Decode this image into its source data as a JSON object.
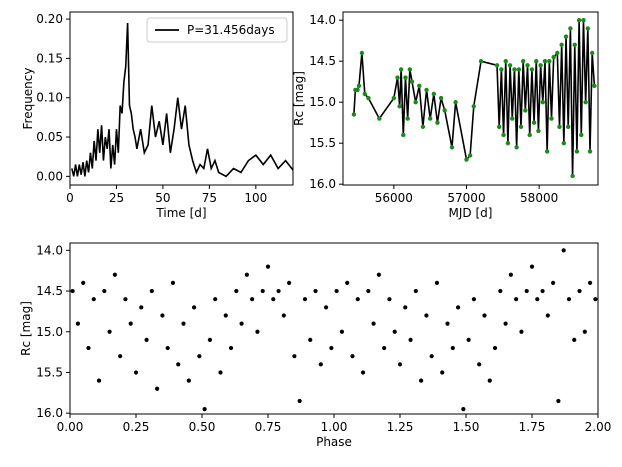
{
  "chart_data": [
    {
      "type": "line",
      "xlabel": "Time [d]",
      "ylabel": "Frequency",
      "x": [
        1,
        2,
        3,
        4,
        5,
        6,
        7,
        8,
        9,
        10,
        11,
        12,
        13,
        14,
        15,
        16,
        17,
        18,
        19,
        20,
        21,
        22,
        23,
        24,
        25,
        26,
        27,
        28,
        29,
        30,
        31,
        32,
        33,
        34,
        35,
        36,
        38,
        40,
        42,
        44,
        46,
        48,
        50,
        52,
        54,
        56,
        58,
        60,
        62,
        64,
        66,
        68,
        70,
        72,
        74,
        76,
        78,
        80,
        84,
        88,
        92,
        96,
        100,
        104,
        108,
        112,
        116,
        120
      ],
      "series": [
        {
          "name": "P=31.456days",
          "color": "#000000",
          "values": [
            0.01,
            0.0,
            0.015,
            0.0,
            0.015,
            0.002,
            0.018,
            0.0,
            0.02,
            0.005,
            0.03,
            0.01,
            0.045,
            0.02,
            0.06,
            0.03,
            0.065,
            0.02,
            0.05,
            0.035,
            0.06,
            0.01,
            0.04,
            0.015,
            0.06,
            0.03,
            0.09,
            0.08,
            0.12,
            0.14,
            0.195,
            0.09,
            0.08,
            0.06,
            0.05,
            0.035,
            0.06,
            0.03,
            0.04,
            0.09,
            0.05,
            0.07,
            0.04,
            0.08,
            0.03,
            0.06,
            0.1,
            0.06,
            0.09,
            0.04,
            0.02,
            0.005,
            0.015,
            0.01,
            0.035,
            0.01,
            0.02,
            0.005,
            0.0,
            0.01,
            0.005,
            0.02,
            0.027,
            0.015,
            0.027,
            0.01,
            0.02,
            0.008
          ]
        }
      ],
      "xlim": [
        0,
        120
      ],
      "ylim": [
        -0.011,
        0.209
      ],
      "xticks": [
        0,
        25,
        50,
        75,
        100
      ],
      "yticks": [
        {
          "value": 0,
          "label": "0.00"
        },
        {
          "value": 0.05,
          "label": "0.05"
        },
        {
          "value": 0.1,
          "label": "0.10"
        },
        {
          "value": 0.15,
          "label": "0.15"
        },
        {
          "value": 0.2,
          "label": "0.20"
        }
      ],
      "legend": "upper right"
    },
    {
      "type": "line",
      "xlabel": "MJD [d]",
      "ylabel": "Rc [mag]",
      "color": "#000000",
      "marker_color": "#1a8a1a",
      "x": [
        55450,
        55470,
        55500,
        55520,
        55560,
        55600,
        55650,
        55800,
        56000,
        56050,
        56080,
        56100,
        56130,
        56160,
        56190,
        56220,
        56250,
        56300,
        56350,
        56400,
        56450,
        56500,
        56550,
        56600,
        56650,
        56700,
        56800,
        56850,
        57000,
        57050,
        57100,
        57200,
        57420,
        57450,
        57480,
        57510,
        57540,
        57570,
        57600,
        57630,
        57660,
        57690,
        57720,
        57750,
        57780,
        57810,
        57840,
        57870,
        57900,
        57930,
        57960,
        57990,
        58020,
        58050,
        58080,
        58110,
        58140,
        58170,
        58200,
        58250,
        58280,
        58310,
        58340,
        58370,
        58400,
        58430,
        58460,
        58490,
        58520,
        58550,
        58580,
        58610,
        58640,
        58670,
        58700,
        58730,
        58760
      ],
      "values": [
        15.15,
        14.85,
        14.85,
        14.8,
        14.4,
        14.9,
        14.95,
        15.2,
        14.95,
        14.7,
        15.05,
        14.6,
        15.4,
        14.7,
        15.2,
        14.6,
        14.75,
        15.0,
        14.8,
        15.3,
        14.85,
        15.2,
        14.9,
        15.25,
        14.95,
        15.1,
        15.55,
        15.0,
        15.7,
        15.65,
        15.05,
        14.5,
        14.55,
        15.3,
        14.6,
        15.4,
        14.5,
        15.5,
        14.55,
        15.2,
        14.6,
        15.55,
        14.6,
        15.3,
        14.5,
        15.1,
        14.55,
        15.4,
        14.6,
        15.25,
        14.5,
        15.35,
        14.55,
        15.0,
        14.5,
        15.6,
        14.5,
        15.2,
        14.45,
        14.4,
        15.3,
        14.3,
        15.5,
        14.2,
        15.3,
        14.1,
        15.9,
        14.3,
        15.6,
        14.0,
        15.4,
        14.0,
        15.0,
        14.1,
        15.6,
        14.4,
        14.8
      ],
      "xlim": [
        55300,
        58810
      ],
      "ylim": [
        16.01,
        13.9
      ],
      "xticks": [
        56000,
        57000,
        58000
      ],
      "yticks": [
        {
          "value": 14,
          "label": "14.0"
        },
        14.5,
        {
          "value": 15,
          "label": "15.0"
        },
        15.5,
        {
          "value": 16,
          "label": "16.0"
        }
      ]
    },
    {
      "type": "scatter",
      "xlabel": "Phase",
      "ylabel": "Rc [mag]",
      "color": "#000000",
      "x": [
        0.01,
        0.03,
        0.05,
        0.07,
        0.09,
        0.11,
        0.13,
        0.15,
        0.17,
        0.19,
        0.21,
        0.23,
        0.25,
        0.27,
        0.29,
        0.31,
        0.33,
        0.35,
        0.37,
        0.39,
        0.41,
        0.43,
        0.45,
        0.47,
        0.49,
        0.51,
        0.53,
        0.55,
        0.57,
        0.59,
        0.61,
        0.63,
        0.65,
        0.67,
        0.69,
        0.71,
        0.73,
        0.75,
        0.77,
        0.79,
        0.81,
        0.83,
        0.85,
        0.87,
        0.89,
        0.91,
        0.93,
        0.95,
        0.97,
        0.99,
        1.01,
        1.03,
        1.05,
        1.07,
        1.09,
        1.11,
        1.13,
        1.15,
        1.17,
        1.19,
        1.21,
        1.23,
        1.25,
        1.27,
        1.29,
        1.31,
        1.33,
        1.35,
        1.37,
        1.39,
        1.41,
        1.43,
        1.45,
        1.47,
        1.49,
        1.51,
        1.53,
        1.55,
        1.57,
        1.59,
        1.61,
        1.63,
        1.65,
        1.67,
        1.69,
        1.71,
        1.73,
        1.75,
        1.77,
        1.79,
        1.81,
        1.83,
        1.85,
        1.87,
        1.89,
        1.91,
        1.93,
        1.95,
        1.97,
        1.99
      ],
      "values": [
        14.5,
        14.9,
        14.4,
        15.2,
        14.6,
        15.6,
        14.5,
        15.0,
        14.3,
        15.3,
        14.6,
        14.9,
        15.5,
        14.7,
        15.1,
        14.5,
        15.7,
        14.8,
        15.2,
        14.4,
        15.4,
        14.9,
        15.6,
        14.7,
        15.3,
        15.95,
        15.1,
        14.6,
        15.5,
        14.8,
        15.2,
        14.5,
        14.9,
        14.3,
        14.6,
        15.0,
        14.5,
        14.2,
        14.6,
        14.5,
        14.8,
        14.4,
        15.3,
        15.85,
        14.6,
        15.1,
        14.5,
        15.4,
        14.7,
        15.2,
        14.5,
        15.0,
        14.4,
        15.3,
        14.6,
        15.5,
        14.5,
        14.9,
        14.3,
        15.2,
        14.6,
        15.0,
        15.4,
        14.7,
        15.1,
        14.5,
        15.6,
        14.8,
        15.3,
        14.4,
        15.5,
        14.9,
        15.2,
        14.7,
        15.95,
        15.1,
        14.6,
        15.4,
        14.8,
        15.6,
        15.2,
        14.5,
        14.9,
        14.3,
        14.6,
        15.0,
        14.5,
        14.2,
        14.6,
        14.5,
        14.8,
        14.4,
        15.85,
        14.0,
        14.6,
        15.1,
        14.5,
        15.0,
        14.4,
        14.6
      ],
      "xlim": [
        0,
        2
      ],
      "ylim": [
        16.01,
        13.91
      ],
      "xticks": [
        {
          "value": 0,
          "label": "0.00"
        },
        {
          "value": 0.25,
          "label": "0.25"
        },
        {
          "value": 0.5,
          "label": "0.50"
        },
        {
          "value": 0.75,
          "label": "0.75"
        },
        {
          "value": 1,
          "label": "1.00"
        },
        {
          "value": 1.25,
          "label": "1.25"
        },
        {
          "value": 1.5,
          "label": "1.50"
        },
        {
          "value": 1.75,
          "label": "1.75"
        },
        {
          "value": 2,
          "label": "2.00"
        }
      ],
      "yticks": [
        {
          "value": 14,
          "label": "14.0"
        },
        14.5,
        {
          "value": 15,
          "label": "15.0"
        },
        15.5,
        {
          "value": 16,
          "label": "16.0"
        }
      ]
    }
  ]
}
